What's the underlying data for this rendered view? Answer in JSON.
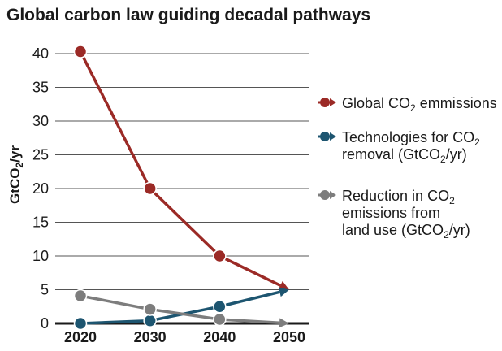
{
  "chart_data": {
    "type": "line",
    "title": "Global carbon law guiding decadal pathways",
    "ylabel": {
      "main": "GtCO",
      "sub": "2",
      "suffix": "/yr"
    },
    "xlabel": "",
    "x": [
      "2020",
      "2030",
      "2040",
      "2050"
    ],
    "ylim": [
      0,
      40
    ],
    "yticks": [
      0,
      5,
      10,
      15,
      20,
      25,
      30,
      35,
      40
    ],
    "grid": true,
    "legend_position": "right",
    "series": [
      {
        "values": [
          40.3,
          20.0,
          10.0,
          5.0
        ],
        "color": "#9b2a26",
        "legend": [
          [
            {
              "t": "Global CO"
            },
            {
              "t": "2",
              "sub": true
            },
            {
              "t": " emmissions"
            }
          ]
        ]
      },
      {
        "values": [
          0.0,
          0.4,
          2.5,
          5.0
        ],
        "color": "#1d5570",
        "legend": [
          [
            {
              "t": "Technologies for CO"
            },
            {
              "t": "2",
              "sub": true
            }
          ],
          [
            {
              "t": "removal (GtCO"
            },
            {
              "t": "2",
              "sub": true
            },
            {
              "t": "/yr)"
            }
          ]
        ]
      },
      {
        "values": [
          4.1,
          2.1,
          0.6,
          0.0
        ],
        "color": "#7d7d7d",
        "legend": [
          [
            {
              "t": "Reduction in CO"
            },
            {
              "t": "2",
              "sub": true
            }
          ],
          [
            {
              "t": "emissions from"
            }
          ],
          [
            {
              "t": "land use (GtCO"
            },
            {
              "t": "2",
              "sub": true
            },
            {
              "t": "/yr)"
            }
          ]
        ]
      }
    ]
  }
}
